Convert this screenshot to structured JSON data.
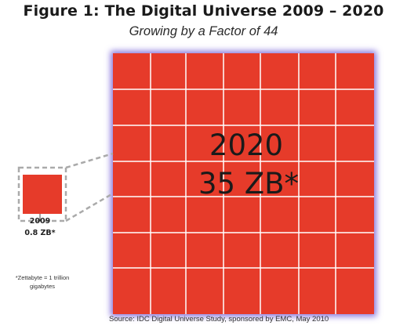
{
  "chart_data": {
    "type": "area",
    "title": "Figure 1:  The Digital Universe 2009 – 2020",
    "subtitle": "Growing by a Factor of 44",
    "categories": [
      "2009",
      "2020"
    ],
    "values": [
      0.8,
      35
    ],
    "unit": "ZB*",
    "labels": [
      {
        "year": "2009",
        "amount": "0.8 ZB*"
      },
      {
        "year": "2020",
        "amount": "35 ZB*"
      }
    ],
    "footnote": "*Zettabyte = 1 trillion gigabytes",
    "source": "Source: IDC Digital Universe Study, sponsored by EMC, May 2010"
  },
  "colors": {
    "fill": "#e63b2a",
    "grid_line": "#ffffff",
    "glow": "#8877dd",
    "connector": "#aaaaaa"
  }
}
